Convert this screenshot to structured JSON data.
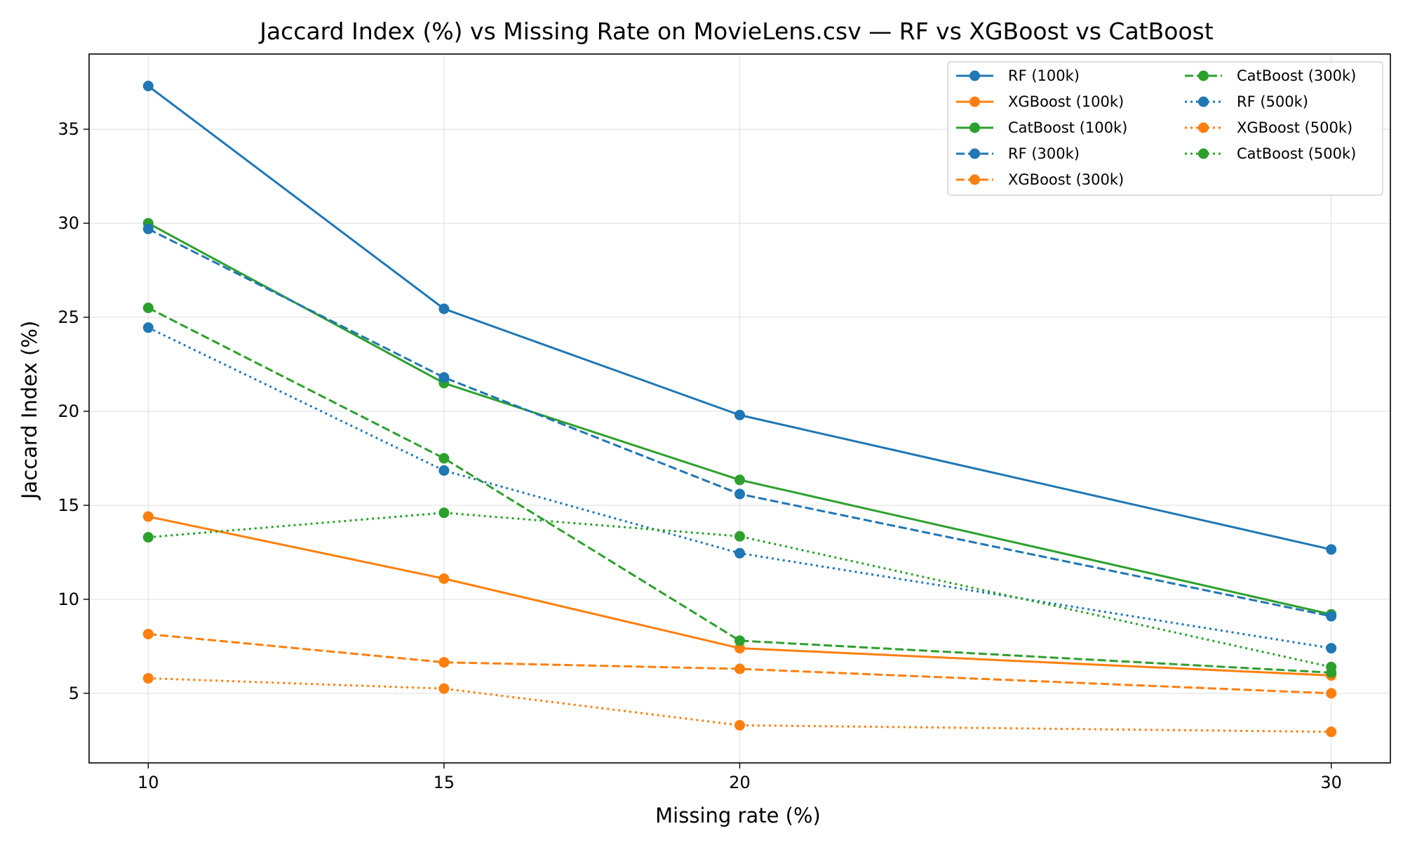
{
  "chart_data": {
    "type": "line",
    "title": "Jaccard Index (%) vs Missing Rate on MovieLens.csv — RF vs XGBoost vs CatBoost",
    "xlabel": "Missing rate (%)",
    "ylabel": "Jaccard Index (%)",
    "x": [
      10,
      15,
      20,
      30
    ],
    "x_ticks": [
      "10",
      "15",
      "20",
      "30"
    ],
    "y_ticks": [
      "5",
      "10",
      "15",
      "20",
      "25",
      "30",
      "35"
    ],
    "xlim": [
      9,
      31.0
    ],
    "ylim": [
      1.3,
      39.0
    ],
    "grid": true,
    "legend_position": "top-right",
    "legend_columns": 2,
    "colors": {
      "rf": "#1f77b4",
      "xgboost": "#ff7f0e",
      "catboost": "#2ca02c"
    },
    "series": [
      {
        "name": "RF (100k)",
        "color": "#1f77b4",
        "linestyle": "solid",
        "values": [
          37.3,
          25.45,
          19.8,
          12.65
        ]
      },
      {
        "name": "XGBoost (100k)",
        "color": "#ff7f0e",
        "linestyle": "solid",
        "values": [
          14.4,
          11.1,
          7.4,
          5.95
        ]
      },
      {
        "name": "CatBoost (100k)",
        "color": "#2ca02c",
        "linestyle": "solid",
        "values": [
          30.0,
          21.5,
          16.35,
          9.2
        ]
      },
      {
        "name": "RF (300k)",
        "color": "#1f77b4",
        "linestyle": "dashed",
        "values": [
          29.7,
          21.8,
          15.6,
          9.1
        ]
      },
      {
        "name": "XGBoost (300k)",
        "color": "#ff7f0e",
        "linestyle": "dashed",
        "values": [
          8.15,
          6.65,
          6.3,
          5.0
        ]
      },
      {
        "name": "CatBoost (300k)",
        "color": "#2ca02c",
        "linestyle": "dashed",
        "values": [
          25.5,
          17.5,
          7.8,
          6.1
        ]
      },
      {
        "name": "RF (500k)",
        "color": "#1f77b4",
        "linestyle": "dotted",
        "values": [
          24.45,
          16.85,
          12.45,
          7.4
        ]
      },
      {
        "name": "XGBoost (500k)",
        "color": "#ff7f0e",
        "linestyle": "dotted",
        "values": [
          5.8,
          5.25,
          3.3,
          2.95
        ]
      },
      {
        "name": "CatBoost (500k)",
        "color": "#2ca02c",
        "linestyle": "dotted",
        "values": [
          13.3,
          14.6,
          13.35,
          6.4
        ]
      }
    ]
  }
}
